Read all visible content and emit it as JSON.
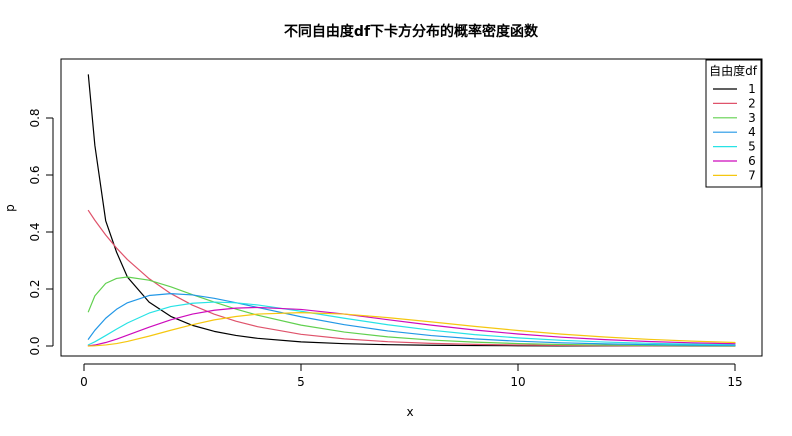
{
  "chart_data": {
    "type": "line",
    "title": "不同自由度df下卡方分布的概率密度函数",
    "xlabel": "x",
    "ylabel": "p",
    "xlim": [
      0,
      15
    ],
    "ylim": [
      0,
      0.95
    ],
    "x_ticks": [
      0,
      5,
      10,
      15
    ],
    "y_ticks": [
      0.0,
      0.2,
      0.4,
      0.6,
      0.8
    ],
    "x_tick_labels": [
      "0",
      "5",
      "10",
      "15"
    ],
    "y_tick_labels": [
      "0.0",
      "0.2",
      "0.4",
      "0.6",
      "0.8"
    ],
    "grid": false,
    "legend": {
      "title": "自由度df",
      "position": "top-right"
    },
    "x": [
      0.1,
      0.25,
      0.5,
      0.75,
      1,
      1.5,
      2,
      2.5,
      3,
      3.5,
      4,
      5,
      6,
      7,
      8,
      9,
      10,
      11,
      12,
      13,
      14,
      15
    ],
    "series": [
      {
        "name": "1",
        "color": "#000000",
        "values": [
          0.9516,
          0.7041,
          0.4394,
          0.3294,
          0.242,
          0.1539,
          0.1038,
          0.0723,
          0.0514,
          0.037,
          0.027,
          0.0146,
          0.0081,
          0.0046,
          0.0026,
          0.0015,
          0.0009,
          0.0005,
          0.0003,
          0.0002,
          0.0001,
          0.0001
        ]
      },
      {
        "name": "2",
        "color": "#DF536B",
        "values": [
          0.4756,
          0.4412,
          0.3894,
          0.3436,
          0.3033,
          0.2362,
          0.1839,
          0.1433,
          0.1116,
          0.0869,
          0.0677,
          0.041,
          0.0249,
          0.0151,
          0.0092,
          0.0056,
          0.0034,
          0.002,
          0.0012,
          0.0008,
          0.0005,
          0.0003
        ]
      },
      {
        "name": "3",
        "color": "#61D04F",
        "values": [
          0.12,
          0.176,
          0.2197,
          0.2371,
          0.242,
          0.2309,
          0.2076,
          0.1802,
          0.1542,
          0.1295,
          0.108,
          0.0733,
          0.0488,
          0.032,
          0.0209,
          0.0135,
          0.0085,
          0.0053,
          0.0033,
          0.0021,
          0.0013,
          0.0008
        ]
      },
      {
        "name": "4",
        "color": "#2297E6",
        "values": [
          0.0238,
          0.0551,
          0.0974,
          0.1288,
          0.1516,
          0.1771,
          0.1839,
          0.1791,
          0.1673,
          0.152,
          0.1353,
          0.1026,
          0.0747,
          0.0528,
          0.0366,
          0.025,
          0.0168,
          0.0112,
          0.0074,
          0.0049,
          0.0032,
          0.0021
        ]
      },
      {
        "name": "5",
        "color": "#28E2E5",
        "values": [
          0.004,
          0.0147,
          0.0366,
          0.0593,
          0.0807,
          0.1154,
          0.1384,
          0.1499,
          0.1542,
          0.1515,
          0.144,
          0.122,
          0.0974,
          0.0746,
          0.0554,
          0.0399,
          0.0285,
          0.0199,
          0.0139,
          0.0095,
          0.0065,
          0.0044
        ]
      },
      {
        "name": "6",
        "color": "#CD0BBC",
        "values": [
          0.0006,
          0.0034,
          0.0122,
          0.0239,
          0.0379,
          0.0661,
          0.092,
          0.112,
          0.1255,
          0.1329,
          0.1353,
          0.1283,
          0.112,
          0.0923,
          0.0733,
          0.0562,
          0.0421,
          0.0309,
          0.0223,
          0.0159,
          0.0112,
          0.0079
        ]
      },
      {
        "name": "7",
        "color": "#F5C710",
        "values": [
          0.0001,
          0.0007,
          0.0037,
          0.0086,
          0.0161,
          0.0346,
          0.0553,
          0.0749,
          0.0916,
          0.1036,
          0.112,
          0.1171,
          0.112,
          0.0996,
          0.0846,
          0.0688,
          0.0544,
          0.0418,
          0.0315,
          0.0234,
          0.0171,
          0.0122
        ]
      }
    ]
  }
}
